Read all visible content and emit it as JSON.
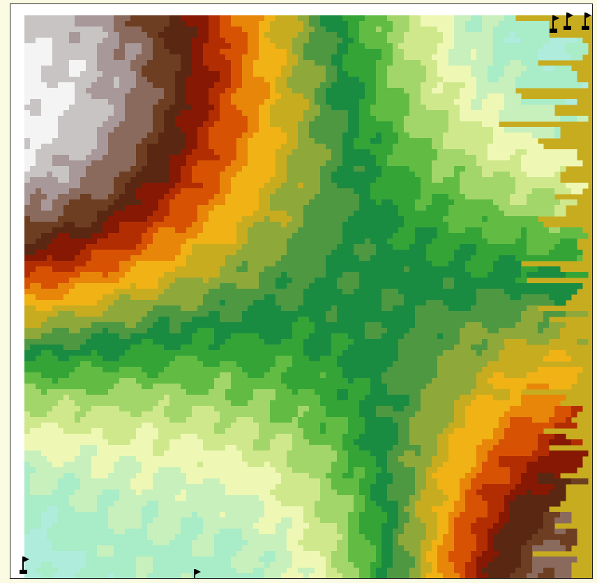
{
  "map": {
    "palette": [
      "#f4f4f4",
      "#c8c4c4",
      "#a8989a",
      "#8a6a5c",
      "#6e3e22",
      "#5a2812",
      "#861804",
      "#b22e02",
      "#d85204",
      "#e8860a",
      "#f0b214",
      "#c8ac20",
      "#8ea83a",
      "#4e9842",
      "#1a8c42",
      "#34a436",
      "#62bc44",
      "#a2d66a",
      "#d0e88c",
      "#eef8b4",
      "#c8f0bc",
      "#a8ecc8",
      "#b0ecdc"
    ],
    "markers": [
      {
        "name": "flag-marker",
        "location": "top-right-1"
      },
      {
        "name": "flag-marker",
        "location": "top-right-2"
      },
      {
        "name": "flag-marker",
        "location": "top-right-3"
      },
      {
        "name": "flag-marker",
        "location": "bottom-left"
      },
      {
        "name": "flag-marker",
        "location": "bottom-center"
      }
    ],
    "marker_icon": "flag-icon"
  }
}
